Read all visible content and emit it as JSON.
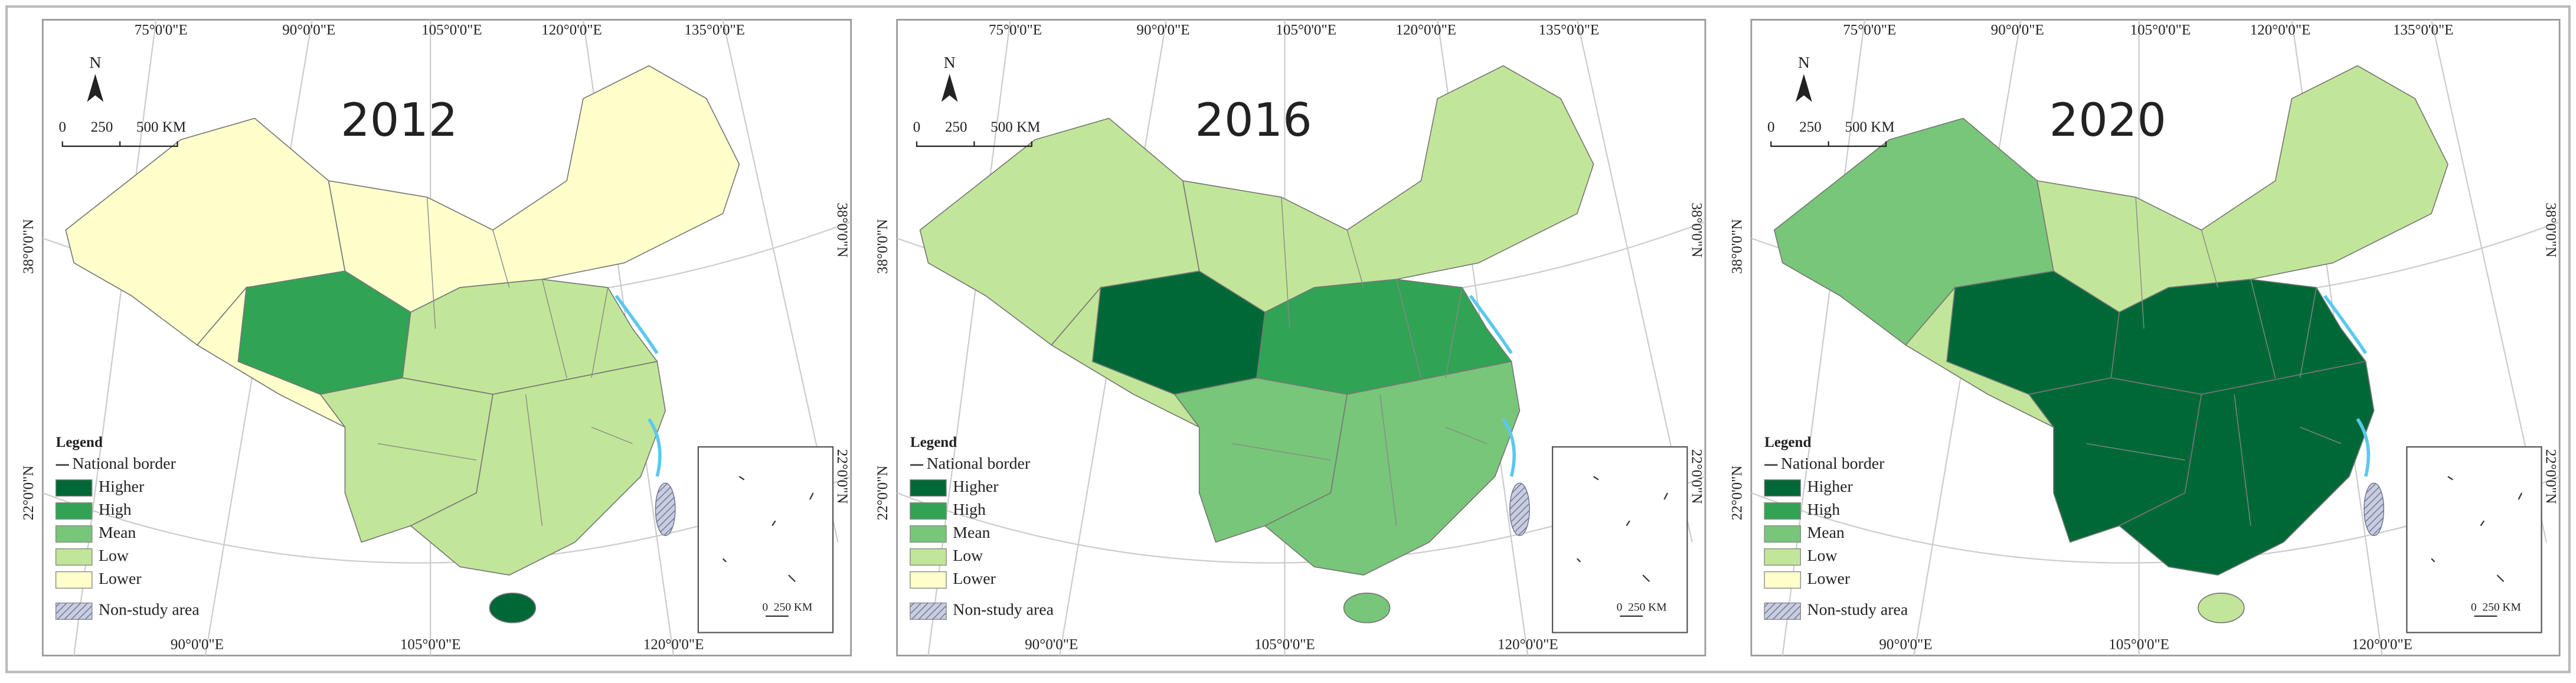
{
  "panels": [
    {
      "year": "2012"
    },
    {
      "year": "2016"
    },
    {
      "year": "2020"
    }
  ],
  "graticule": {
    "top": [
      "75°0'0\"E",
      "90°0'0\"E",
      "105°0'0\"E",
      "120°0'0\"E",
      "135°0'0\"E"
    ],
    "bottom": [
      "90°0'0\"E",
      "105°0'0\"E",
      "120°0'0\"E"
    ],
    "side": [
      "38°0'0\"N",
      "22°0'0\"N"
    ]
  },
  "north": "N",
  "scale_bar": [
    "0",
    "250",
    "500 KM"
  ],
  "inset_scale": [
    "0",
    "250 KM"
  ],
  "legend": {
    "title": "Legend",
    "border": "National border",
    "items": [
      "Higher",
      "High",
      "Mean",
      "Low",
      "Lower"
    ],
    "non_study": "Non-study area"
  }
}
